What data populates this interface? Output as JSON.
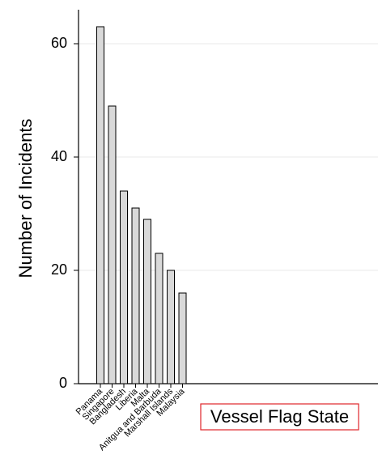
{
  "chart_data": {
    "type": "bar",
    "x_label": "Vessel Flag State",
    "y_label": "Number of Incidents",
    "categories": [
      "Panama",
      "Singapore",
      "Bangladesh",
      "Liberia",
      "Malta",
      "Anitgua and Barbuda",
      "Marshall Islands",
      "Malaysia"
    ],
    "values": [
      63,
      49,
      34,
      31,
      29,
      23,
      20,
      16
    ],
    "color": "#d9d9d9",
    "ylim": [
      0,
      66
    ],
    "yticks": [
      0,
      20,
      40,
      60
    ],
    "grid": true
  }
}
